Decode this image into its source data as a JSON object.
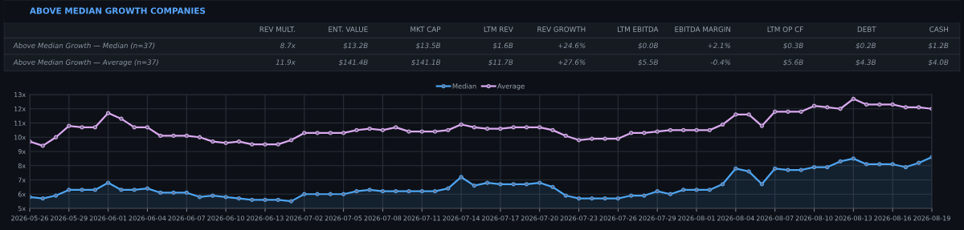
{
  "chart_data": [
    {
      "type": "other",
      "title": "ABOVE MEDIAN GROWTH COMPANIES",
      "categories": [
        "REV MULT.",
        "ENT. VALUE",
        "MKT CAP",
        "LTM REV",
        "REV GROWTH",
        "LTM EBITDA",
        "EBITDA MARGIN",
        "LTM OP CF",
        "DEBT",
        "CASH"
      ],
      "y_categories": [
        "Above Median Growth — Median (n=37)",
        "Above Median Growth — Average (n=37)"
      ],
      "cell_labels": [
        [
          "8.7x",
          "$13.2B",
          "$13.5B",
          "$1.6B",
          "+24.6%",
          "$0.0B",
          "+2.1%",
          "$0.3B",
          "$0.2B",
          "$1.2B"
        ],
        [
          "11.9x",
          "$141.4B",
          "$141.1B",
          "$11.7B",
          "+27.6%",
          "$5.5B",
          "-0.4%",
          "$5.6B",
          "$4.3B",
          "$4.0B"
        ]
      ]
    },
    {
      "type": "line",
      "categories": [
        "2026-05-26",
        null,
        null,
        "2026-05-29",
        null,
        null,
        "2026-06-01",
        null,
        null,
        "2026-06-04",
        null,
        null,
        "2026-06-07",
        null,
        null,
        "2026-06-10",
        null,
        null,
        "2026-06-13",
        null,
        null,
        "2026-07-02",
        null,
        null,
        "2026-07-05",
        null,
        null,
        "2026-07-08",
        null,
        null,
        "2026-07-11",
        null,
        null,
        "2026-07-14",
        null,
        null,
        "2026-07-17",
        null,
        null,
        "2026-07-20",
        null,
        null,
        "2026-07-23",
        null,
        null,
        "2026-07-26",
        null,
        null,
        "2026-07-29",
        null,
        null,
        "2026-08-01",
        null,
        null,
        "2026-08-04",
        null,
        null,
        "2026-08-07",
        null,
        null,
        "2026-08-10",
        null,
        null,
        "2026-08-13",
        null,
        null,
        "2026-08-16",
        null,
        null,
        "2026-08-19"
      ],
      "series": [
        {
          "name": "Median",
          "type": "area",
          "color": "#4ea5f2",
          "values": [
            5.8,
            5.7,
            5.9,
            6.3,
            6.3,
            6.3,
            6.8,
            6.3,
            6.3,
            6.4,
            6.1,
            6.1,
            6.1,
            5.8,
            5.9,
            5.8,
            5.7,
            5.6,
            5.6,
            5.6,
            5.5,
            6.0,
            6.0,
            6.0,
            6.0,
            6.2,
            6.3,
            6.2,
            6.2,
            6.2,
            6.2,
            6.2,
            6.4,
            7.2,
            6.6,
            6.8,
            6.7,
            6.7,
            6.7,
            6.8,
            6.5,
            5.9,
            5.7,
            5.7,
            5.7,
            5.7,
            5.9,
            5.9,
            6.2,
            6.0,
            6.3,
            6.3,
            6.3,
            6.7,
            7.8,
            7.6,
            6.7,
            7.8,
            7.7,
            7.7,
            7.9,
            7.9,
            8.3,
            8.5,
            8.1,
            8.1,
            8.1,
            7.9,
            8.2,
            8.6
          ]
        },
        {
          "name": "Average",
          "type": "line",
          "color": "#dcaaf2",
          "values": [
            9.7,
            9.4,
            10.0,
            10.8,
            10.7,
            10.7,
            11.7,
            11.3,
            10.7,
            10.7,
            10.1,
            10.1,
            10.1,
            10.0,
            9.7,
            9.6,
            9.7,
            9.5,
            9.5,
            9.5,
            9.8,
            10.3,
            10.3,
            10.3,
            10.3,
            10.5,
            10.6,
            10.5,
            10.7,
            10.4,
            10.4,
            10.4,
            10.5,
            10.9,
            10.7,
            10.6,
            10.6,
            10.7,
            10.7,
            10.7,
            10.5,
            10.1,
            9.8,
            9.9,
            9.9,
            9.9,
            10.3,
            10.3,
            10.4,
            10.5,
            10.5,
            10.5,
            10.5,
            10.9,
            11.6,
            11.6,
            10.8,
            11.8,
            11.8,
            11.8,
            12.2,
            12.1,
            12.0,
            12.7,
            12.3,
            12.3,
            12.3,
            12.1,
            12.1,
            12.0
          ]
        }
      ],
      "ylim": [
        5,
        13
      ],
      "yticks": [
        {
          "value": 5,
          "label": "5x"
        },
        {
          "value": 6,
          "label": "6x"
        },
        {
          "value": 7,
          "label": "7x"
        },
        {
          "value": 8,
          "label": "8x"
        },
        {
          "value": 9,
          "label": "9x"
        },
        {
          "value": 10,
          "label": "10x"
        },
        {
          "value": 11,
          "label": "11x"
        },
        {
          "value": 12,
          "label": "12x"
        },
        {
          "value": 13,
          "label": "13x"
        }
      ],
      "grid": true,
      "legend": "top",
      "marker": "circle",
      "line_style": "solid"
    }
  ]
}
